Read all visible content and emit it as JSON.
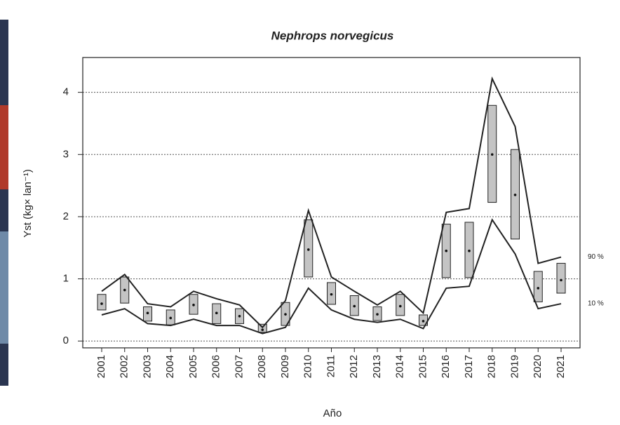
{
  "chart_data": {
    "type": "band-box",
    "title": "Nephrops norvegicus",
    "x_label": "Año",
    "y_label": "Yst (kg× lan⁻¹)",
    "categories": [
      "2001",
      "2002",
      "2003",
      "2004",
      "2005",
      "2006",
      "2007",
      "2008",
      "2009",
      "2010",
      "2011",
      "2012",
      "2013",
      "2014",
      "2015",
      "2016",
      "2017",
      "2018",
      "2019",
      "2020",
      "2021"
    ],
    "boxes": {
      "color": "#c4c4c4",
      "high": [
        0.75,
        1.03,
        0.55,
        0.5,
        0.75,
        0.6,
        0.52,
        0.27,
        0.62,
        1.95,
        0.94,
        0.73,
        0.55,
        0.75,
        0.42,
        1.88,
        1.91,
        3.79,
        3.08,
        1.12,
        1.25
      ],
      "low": [
        0.5,
        0.61,
        0.32,
        0.26,
        0.43,
        0.28,
        0.28,
        0.14,
        0.25,
        1.03,
        0.59,
        0.41,
        0.33,
        0.41,
        0.25,
        1.02,
        1.02,
        2.23,
        1.64,
        0.63,
        0.77
      ],
      "median": [
        0.6,
        0.82,
        0.45,
        0.37,
        0.58,
        0.45,
        0.4,
        0.18,
        0.43,
        1.47,
        0.75,
        0.56,
        0.43,
        0.56,
        0.32,
        1.45,
        1.45,
        3.0,
        2.35,
        0.85,
        0.98
      ]
    },
    "series": [
      {
        "name": "90 %",
        "color": "#222222",
        "values": [
          0.8,
          1.07,
          0.6,
          0.55,
          0.8,
          0.68,
          0.58,
          0.22,
          0.65,
          2.1,
          1.03,
          0.8,
          0.58,
          0.8,
          0.45,
          2.07,
          2.13,
          4.22,
          3.45,
          1.25,
          1.35
        ]
      },
      {
        "name": "10 %",
        "color": "#222222",
        "values": [
          0.42,
          0.52,
          0.28,
          0.25,
          0.35,
          0.25,
          0.25,
          0.12,
          0.22,
          0.85,
          0.5,
          0.35,
          0.3,
          0.35,
          0.2,
          0.85,
          0.88,
          1.95,
          1.4,
          0.52,
          0.6
        ]
      }
    ],
    "ylim": [
      -0.11,
      4.56
    ],
    "yticks": [
      0,
      1,
      2,
      3,
      4
    ],
    "grid": true
  }
}
